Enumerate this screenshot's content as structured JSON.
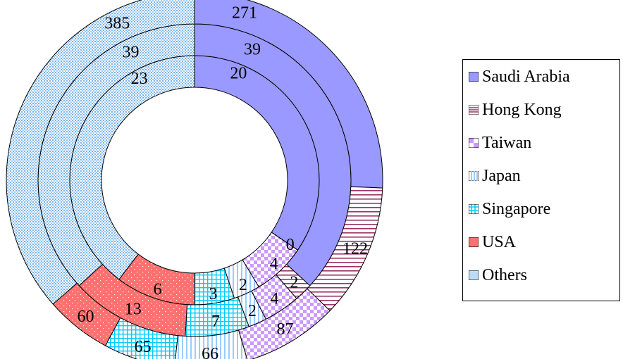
{
  "chart_data": {
    "type": "doughnut",
    "title": "",
    "categories": [
      "Saudi Arabia",
      "Hong Kong",
      "Taiwan",
      "Japan",
      "Singapore",
      "USA",
      "Others"
    ],
    "series": [
      {
        "ring": "inner",
        "values": [
          20,
          0,
          4,
          2,
          3,
          6,
          23
        ],
        "labels": [
          "20",
          "0",
          "4",
          "2",
          "3",
          "6",
          "23"
        ]
      },
      {
        "ring": "middle",
        "values": [
          39,
          2,
          4,
          2,
          7,
          13,
          39
        ],
        "labels": [
          "39",
          "2",
          "4",
          "2",
          "7",
          "13",
          "39"
        ]
      },
      {
        "ring": "outer",
        "values": [
          271,
          122,
          87,
          66,
          65,
          60,
          385
        ],
        "labels": [
          "271",
          "122",
          "87",
          "66",
          "65",
          "60",
          "385"
        ]
      }
    ],
    "legend": {
      "placement": "right"
    }
  },
  "colors": {
    "Saudi Arabia": "#9999ff",
    "Hong Kong": "#993366",
    "Taiwan": "#cc99ff",
    "Japan": "#99ccff",
    "Singapore": "#00ccff",
    "USA": "#ff7070",
    "Others": "#99ccff"
  },
  "patterns": {
    "Saudi Arabia": "solid",
    "Hong Kong": "horizontal-lines",
    "Taiwan": "checker",
    "Japan": "vertical-lines",
    "Singapore": "grid",
    "USA": "dots",
    "Others": "dense-dots"
  }
}
